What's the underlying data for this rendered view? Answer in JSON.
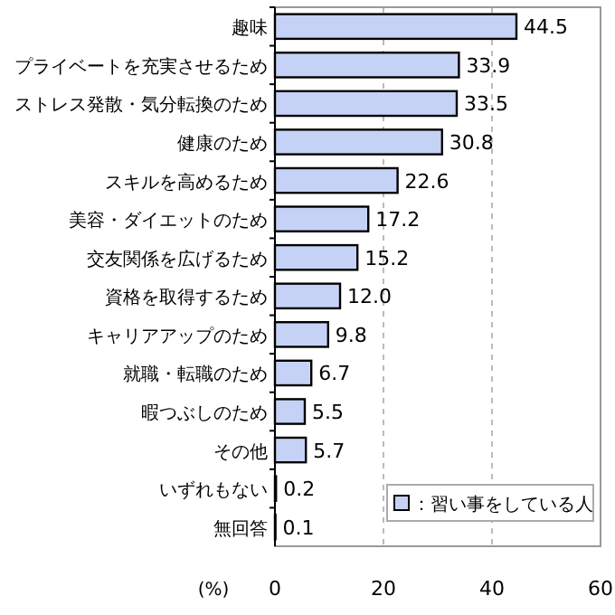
{
  "chart_data": {
    "type": "bar",
    "orientation": "horizontal",
    "xlabel": "(%)",
    "categories": [
      "趣味",
      "プライベートを充実させるため",
      "ストレス発散・気分転換のため",
      "健康のため",
      "スキルを高めるため",
      "美容・ダイエットのため",
      "交友関係を広げるため",
      "資格を取得するため",
      "キャリアアップのため",
      "就職・転職のため",
      "暇つぶしのため",
      "その他",
      "いずれもない",
      "無回答"
    ],
    "series": [
      {
        "name": "：習い事をしている人",
        "color": "#c6d2f5",
        "values": [
          44.5,
          33.9,
          33.5,
          30.8,
          22.6,
          17.2,
          15.2,
          12.0,
          9.8,
          6.7,
          5.5,
          5.7,
          0.2,
          0.1
        ],
        "value_labels": [
          "44.5",
          "33.9",
          "33.5",
          "30.8",
          "22.6",
          "17.2",
          "15.2",
          "12.0",
          "9.8",
          "6.7",
          "5.5",
          "5.7",
          "0.2",
          "0.1"
        ]
      }
    ],
    "xlim": [
      0,
      60
    ],
    "xticks": [
      0,
      20,
      40,
      60
    ],
    "grid": "x",
    "legend": "bottom right"
  }
}
